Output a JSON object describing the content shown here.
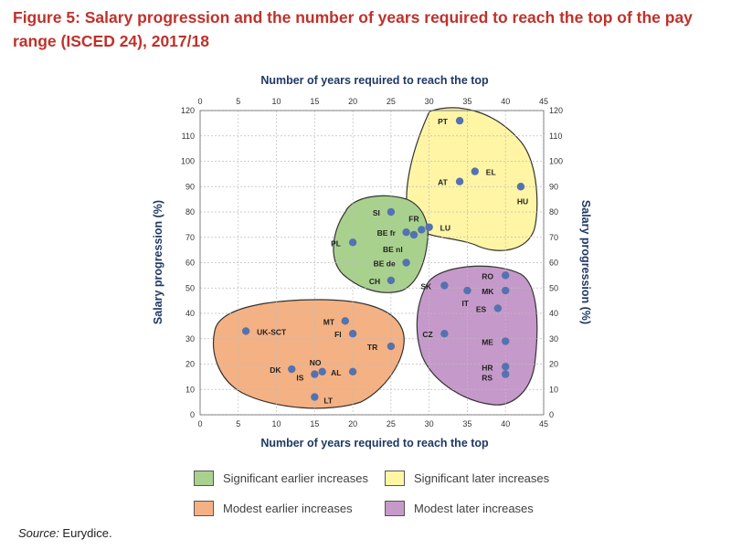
{
  "title": "Figure 5: Salary progression and the number of years required to reach the top of the pay range (ISCED 24), 2017/18",
  "source_label": "Source:",
  "source_value": " Eurydice.",
  "colors": {
    "title": "#c0312b",
    "axis_label": "#1f3864",
    "point": "#5572b0",
    "green": "#a9d18e",
    "yellow": "#fff5a5",
    "orange": "#f4b183",
    "purple": "#c599c9"
  },
  "chart_data": {
    "type": "scatter",
    "xlabel_top": "Number of years required to reach the top",
    "xlabel_bottom": "Number of years required to reach the top",
    "ylabel_left": "Salary progression (%)",
    "ylabel_right": "Salary progression (%)",
    "xlim": [
      0,
      45
    ],
    "ylim": [
      0,
      120
    ],
    "xticks": [
      0,
      5,
      10,
      15,
      20,
      25,
      30,
      35,
      40,
      45
    ],
    "yticks": [
      0,
      10,
      20,
      30,
      40,
      50,
      60,
      70,
      80,
      90,
      100,
      110,
      120
    ],
    "grid": true,
    "points": [
      {
        "label": "PT",
        "x": 34,
        "y": 116
      },
      {
        "label": "EL",
        "x": 36,
        "y": 96
      },
      {
        "label": "AT",
        "x": 34,
        "y": 92
      },
      {
        "label": "HU",
        "x": 42,
        "y": 90
      },
      {
        "label": "SI",
        "x": 25,
        "y": 80
      },
      {
        "label": "FR",
        "x": 29,
        "y": 73
      },
      {
        "label": "LU",
        "x": 30,
        "y": 74
      },
      {
        "label": "BE fr",
        "x": 27,
        "y": 72
      },
      {
        "label": "BE nl",
        "x": 28,
        "y": 71
      },
      {
        "label": "PL",
        "x": 20,
        "y": 68
      },
      {
        "label": "BE de",
        "x": 27,
        "y": 60
      },
      {
        "label": "CH",
        "x": 25,
        "y": 53
      },
      {
        "label": "RO",
        "x": 40,
        "y": 55
      },
      {
        "label": "SK",
        "x": 32,
        "y": 51
      },
      {
        "label": "MK",
        "x": 40,
        "y": 49
      },
      {
        "label": "IT",
        "x": 35,
        "y": 49
      },
      {
        "label": "ES",
        "x": 39,
        "y": 42
      },
      {
        "label": "MT",
        "x": 19,
        "y": 37
      },
      {
        "label": "UK-SCT",
        "x": 6,
        "y": 33
      },
      {
        "label": "FI",
        "x": 20,
        "y": 32
      },
      {
        "label": "CZ",
        "x": 32,
        "y": 32
      },
      {
        "label": "ME",
        "x": 40,
        "y": 29
      },
      {
        "label": "TR",
        "x": 25,
        "y": 27
      },
      {
        "label": "NO",
        "x": 16,
        "y": 17
      },
      {
        "label": "DK",
        "x": 12,
        "y": 18
      },
      {
        "label": "IS",
        "x": 15,
        "y": 16
      },
      {
        "label": "AL",
        "x": 20,
        "y": 17
      },
      {
        "label": "HR",
        "x": 40,
        "y": 19
      },
      {
        "label": "RS",
        "x": 40,
        "y": 16
      },
      {
        "label": "LT",
        "x": 15,
        "y": 7
      }
    ],
    "groups": [
      {
        "name": "Significant earlier increases",
        "color": "#a9d18e"
      },
      {
        "name": "Significant later increases",
        "color": "#fff5a5"
      },
      {
        "name": "Modest earlier increases",
        "color": "#f4b183"
      },
      {
        "name": "Modest later increases",
        "color": "#c599c9"
      }
    ]
  }
}
